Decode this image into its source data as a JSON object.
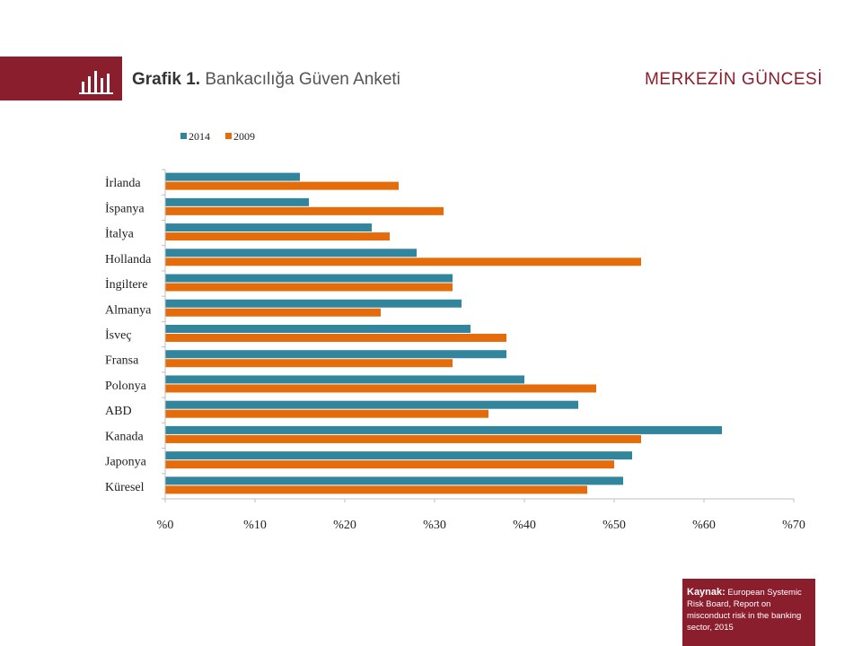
{
  "header": {
    "title_bold": "Grafik 1.",
    "title_rest": " Bankacılığa Güven Anketi",
    "brand": "MERKEZİN GÜNCESİ",
    "icon": "bar-chart-icon"
  },
  "source": {
    "label": "Kaynak:",
    "text": " European Systemic Risk Board, Report on misconduct risk in the banking sector, 2015"
  },
  "colors": {
    "accent": "#8b1e2d",
    "series_2014": "#31859c",
    "series_2009": "#e46c0a"
  },
  "chart_data": {
    "type": "bar",
    "orientation": "horizontal",
    "categories": [
      "İrlanda",
      "İspanya",
      "İtalya",
      "Hollanda",
      "İngiltere",
      "Almanya",
      "İsveç",
      "Fransa",
      "Polonya",
      "ABD",
      "Kanada",
      "Japonya",
      "Küresel"
    ],
    "series": [
      {
        "name": "2014",
        "values": [
          15,
          16,
          23,
          28,
          32,
          33,
          34,
          38,
          40,
          46,
          62,
          52,
          51
        ]
      },
      {
        "name": "2009",
        "values": [
          26,
          31,
          25,
          53,
          32,
          24,
          38,
          32,
          48,
          36,
          53,
          50,
          47
        ]
      }
    ],
    "xlim": [
      0,
      70
    ],
    "xticks": [
      0,
      10,
      20,
      30,
      40,
      50,
      60,
      70
    ],
    "xtick_labels": [
      "%0",
      "%10",
      "%20",
      "%30",
      "%40",
      "%50",
      "%60",
      "%70"
    ],
    "legend_position": "top-left",
    "grid": false
  }
}
